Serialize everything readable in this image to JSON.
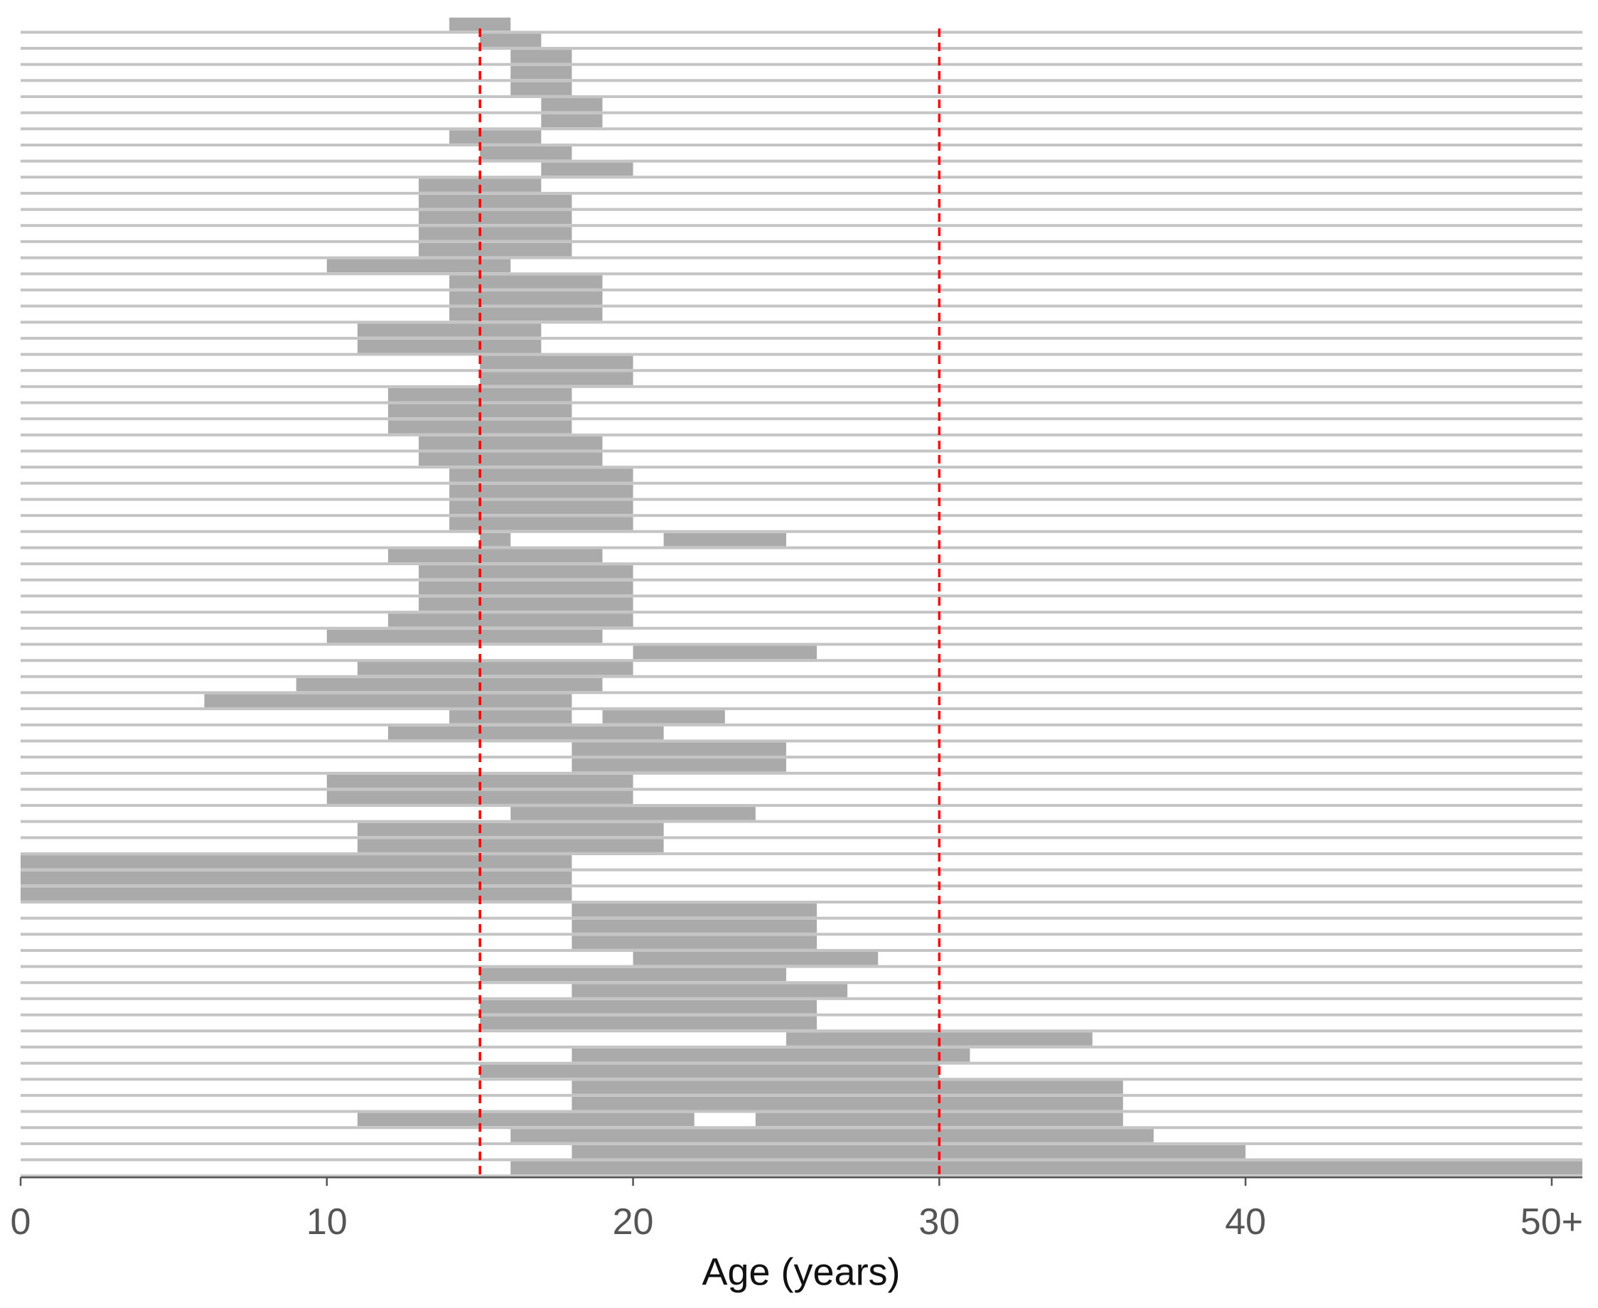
{
  "chart_data": {
    "type": "range_bar",
    "x_label": "Age (years)",
    "xlim": [
      0,
      51
    ],
    "xticks": [
      0,
      10,
      20,
      30,
      40,
      {
        "value": 50,
        "label": "50+"
      }
    ],
    "bar_color": "#aaaaaa",
    "row_line_color": "#c4c4c4",
    "reference_lines": [
      15,
      30
    ],
    "reference_color": "#ff0000",
    "rows": [
      [
        [
          14,
          16
        ]
      ],
      [
        [
          15,
          17
        ]
      ],
      [
        [
          16,
          18
        ]
      ],
      [
        [
          16,
          18
        ]
      ],
      [
        [
          16,
          18
        ]
      ],
      [
        [
          17,
          19
        ]
      ],
      [
        [
          17,
          19
        ]
      ],
      [
        [
          14,
          17
        ]
      ],
      [
        [
          15,
          18
        ]
      ],
      [
        [
          17,
          20
        ]
      ],
      [
        [
          13,
          17
        ]
      ],
      [
        [
          13,
          18
        ]
      ],
      [
        [
          13,
          18
        ]
      ],
      [
        [
          13,
          18
        ]
      ],
      [
        [
          13,
          18
        ]
      ],
      [
        [
          10,
          16
        ]
      ],
      [
        [
          14,
          19
        ]
      ],
      [
        [
          14,
          19
        ]
      ],
      [
        [
          14,
          19
        ]
      ],
      [
        [
          11,
          17
        ]
      ],
      [
        [
          11,
          17
        ]
      ],
      [
        [
          15,
          20
        ]
      ],
      [
        [
          15,
          20
        ]
      ],
      [
        [
          12,
          18
        ]
      ],
      [
        [
          12,
          18
        ]
      ],
      [
        [
          12,
          18
        ]
      ],
      [
        [
          13,
          19
        ]
      ],
      [
        [
          13,
          19
        ]
      ],
      [
        [
          14,
          20
        ]
      ],
      [
        [
          14,
          20
        ]
      ],
      [
        [
          14,
          20
        ]
      ],
      [
        [
          14,
          20
        ]
      ],
      [
        [
          15,
          16
        ],
        [
          21,
          25
        ]
      ],
      [
        [
          12,
          19
        ]
      ],
      [
        [
          13,
          20
        ]
      ],
      [
        [
          13,
          20
        ]
      ],
      [
        [
          13,
          20
        ]
      ],
      [
        [
          12,
          20
        ]
      ],
      [
        [
          10,
          19
        ]
      ],
      [
        [
          20,
          26
        ]
      ],
      [
        [
          11,
          20
        ]
      ],
      [
        [
          9,
          19
        ]
      ],
      [
        [
          6,
          18
        ]
      ],
      [
        [
          14,
          18
        ],
        [
          19,
          23
        ]
      ],
      [
        [
          12,
          21
        ]
      ],
      [
        [
          18,
          25
        ]
      ],
      [
        [
          18,
          25
        ]
      ],
      [
        [
          10,
          20
        ]
      ],
      [
        [
          10,
          20
        ]
      ],
      [
        [
          16,
          24
        ]
      ],
      [
        [
          11,
          21
        ]
      ],
      [
        [
          11,
          21
        ]
      ],
      [
        [
          0,
          18
        ]
      ],
      [
        [
          0,
          18
        ]
      ],
      [
        [
          0,
          18
        ]
      ],
      [
        [
          18,
          26
        ]
      ],
      [
        [
          18,
          26
        ]
      ],
      [
        [
          18,
          26
        ]
      ],
      [
        [
          20,
          28
        ]
      ],
      [
        [
          15,
          25
        ]
      ],
      [
        [
          18,
          27
        ]
      ],
      [
        [
          15,
          26
        ]
      ],
      [
        [
          15,
          26
        ]
      ],
      [
        [
          25,
          35
        ]
      ],
      [
        [
          18,
          31
        ]
      ],
      [
        [
          15,
          30
        ]
      ],
      [
        [
          18,
          36
        ]
      ],
      [
        [
          18,
          36
        ]
      ],
      [
        [
          11,
          22
        ],
        [
          24,
          36
        ]
      ],
      [
        [
          16,
          37
        ]
      ],
      [
        [
          18,
          40
        ]
      ],
      [
        [
          16,
          51
        ]
      ]
    ]
  }
}
